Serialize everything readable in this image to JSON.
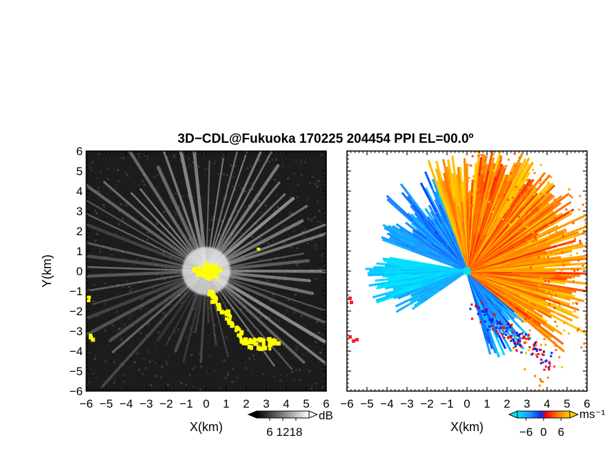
{
  "title": "3D−CDL@Fukuoka 170225 204454 PPI EL=00.0º",
  "colors": {
    "background": "#ffffff",
    "echo_yellow": "#ffff00",
    "radar_marker": "#00e5e5"
  },
  "chart_data": [
    {
      "type": "heatmap",
      "panel": "left",
      "quantity": "SNR",
      "xlabel": "X(km)",
      "ylabel": "Y(km)",
      "xlim": [
        -6,
        6
      ],
      "ylim": [
        -6,
        6
      ],
      "x_ticks": [
        "−6",
        "−5",
        "−4",
        "−3",
        "−2",
        "−1",
        "0",
        "1",
        "2",
        "3",
        "4",
        "5",
        "6"
      ],
      "y_ticks": [
        "6",
        "5",
        "4",
        "3",
        "2",
        "1",
        "0",
        "−1",
        "−2",
        "−3",
        "−4",
        "−5",
        "−6"
      ],
      "colorbar": {
        "unit": "dB",
        "ticks": [
          6,
          12,
          18
        ],
        "tick_labels": [
          "6",
          "12",
          "18"
        ],
        "range": [
          0,
          24
        ]
      },
      "highlight_color": "yellow",
      "grid": false
    },
    {
      "type": "heatmap",
      "panel": "right",
      "quantity": "Doppler velocity",
      "xlabel": "X(km)",
      "ylabel": "",
      "xlim": [
        -6,
        6
      ],
      "ylim": [
        -6,
        6
      ],
      "x_ticks": [
        "−6",
        "−5",
        "−4",
        "−3",
        "−2",
        "−1",
        "0",
        "1",
        "2",
        "3",
        "4",
        "5",
        "6"
      ],
      "colorbar": {
        "unit": "ms⁻¹",
        "ticks": [
          -6,
          0,
          6
        ],
        "tick_labels": [
          "−6",
          "0",
          "6"
        ],
        "range": [
          -9,
          9
        ]
      },
      "radar_at": [
        0,
        0
      ],
      "grid": false
    }
  ]
}
